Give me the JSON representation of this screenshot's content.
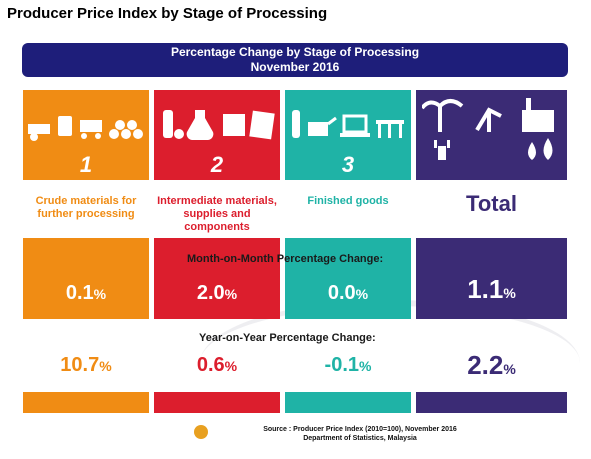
{
  "page": {
    "title": "Producer Price Index by Stage of Processing"
  },
  "banner": {
    "line1": "Percentage Change by Stage of Processing",
    "line2": "November 2016"
  },
  "columns": [
    {
      "number": "1",
      "desc": "Crude materials for further processing",
      "mom_value": "0.1",
      "yoy_value": "10.7",
      "color": "#f08c14",
      "icon_names": [
        "wheelbarrow-icon",
        "oil-drum-icon",
        "cart-icon",
        "logs-icon"
      ]
    },
    {
      "number": "2",
      "desc": "Intermediate materials, supplies and components",
      "mom_value": "2.0",
      "yoy_value": "0.6",
      "color": "#dc1e2d",
      "icon_names": [
        "bottle-icon",
        "beaker-icon",
        "pipe-icon",
        "plank-icon"
      ]
    },
    {
      "number": "3",
      "desc": "Finished goods",
      "mom_value": "0.0",
      "yoy_value": "-0.1",
      "color": "#1fb3a6",
      "icon_names": [
        "bottle-icon",
        "watering-can-icon",
        "laptop-icon",
        "furniture-icon"
      ]
    },
    {
      "number": "",
      "desc": "Total",
      "mom_value": "1.1",
      "yoy_value": "2.2",
      "color": "#3b2b75",
      "icon_names": [
        "palm-tree-icon",
        "oil-pump-icon",
        "factory-icon",
        "drops-icon",
        "plug-icon"
      ]
    }
  ],
  "labels": {
    "mom": "Month-on-Month Percentage Change:",
    "yoy": "Year-on-Year Percentage Change:",
    "percent": "%"
  },
  "source": {
    "line1": "Source : Producer Price Index (2010=100), November 2016",
    "line2": "Department of Statistics, Malaysia"
  }
}
